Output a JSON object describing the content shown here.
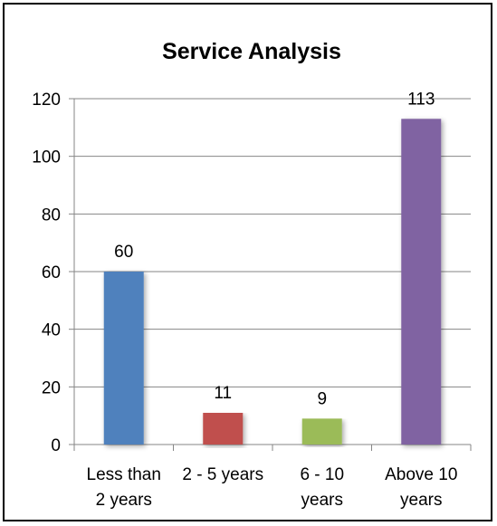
{
  "chart_data": {
    "type": "bar",
    "title": "Service Analysis",
    "xlabel": "",
    "ylabel": "",
    "categories": [
      [
        "Less than",
        "2 years"
      ],
      [
        "2 - 5 years"
      ],
      [
        "6 - 10",
        "years"
      ],
      [
        "Above 10",
        "years"
      ]
    ],
    "values": [
      60,
      11,
      9,
      113
    ],
    "data_labels": [
      "60",
      "11",
      "9",
      "113"
    ],
    "colors": [
      "#4f81bd",
      "#c0504d",
      "#9bbb59",
      "#8064a2"
    ],
    "ylim": [
      0,
      120
    ],
    "yticks": [
      0,
      20,
      40,
      60,
      80,
      100,
      120
    ],
    "ytick_labels": [
      "0",
      "20",
      "40",
      "60",
      "80",
      "100",
      "120"
    ],
    "grid": true,
    "legend": "none"
  }
}
